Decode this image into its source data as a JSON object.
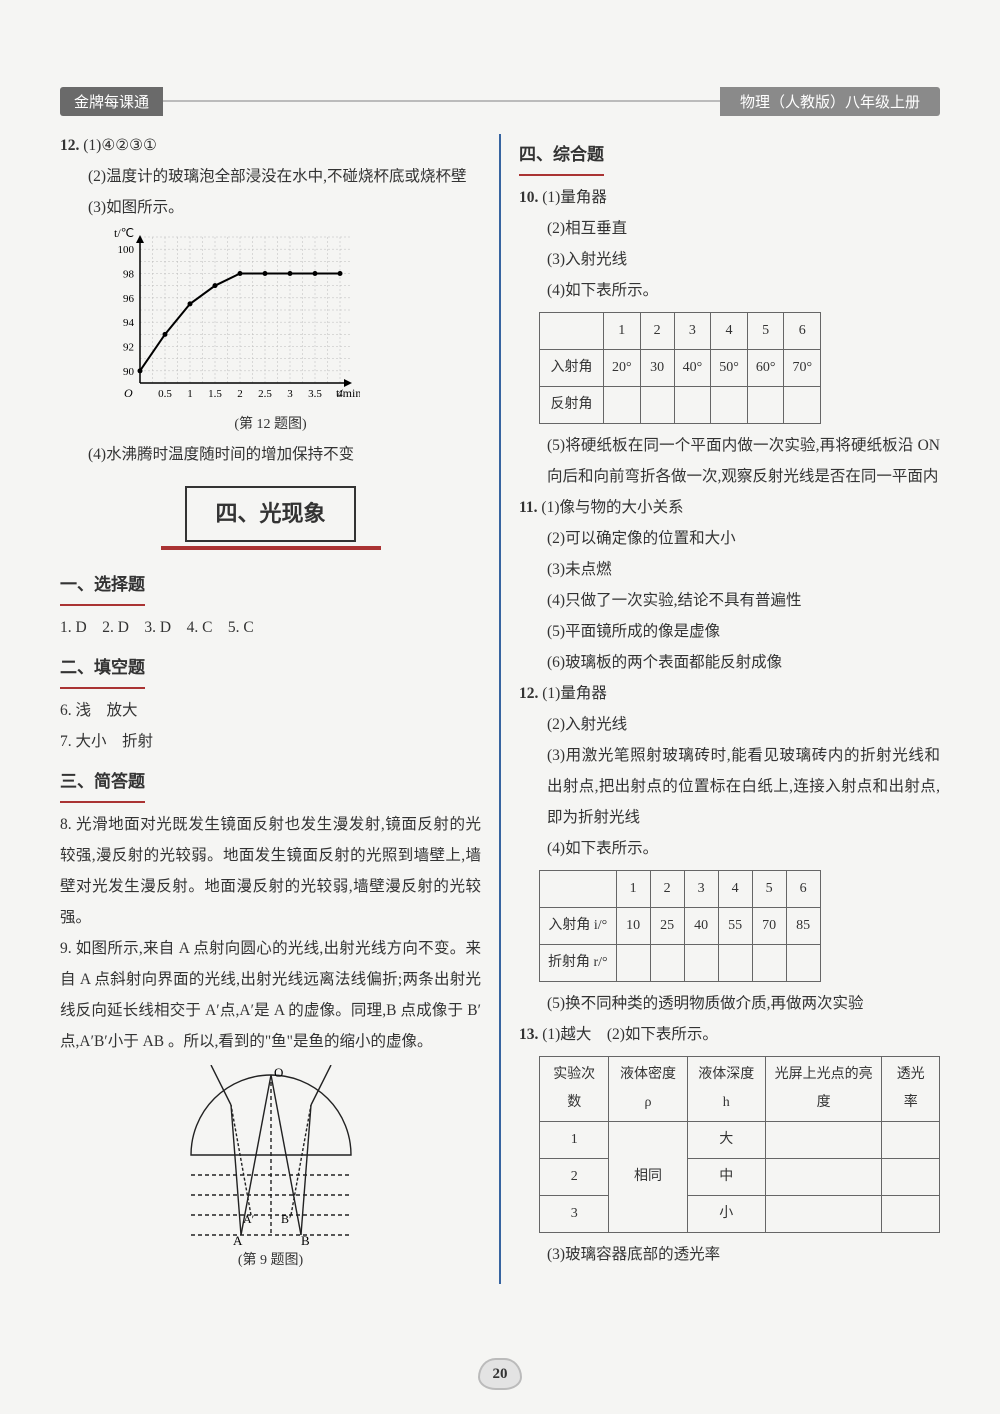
{
  "header": {
    "left": "金牌每课通",
    "right": "物理（人教版）八年级上册"
  },
  "left": {
    "q12": {
      "num": "12.",
      "p1": "(1)④②③①",
      "p2": "(2)温度计的玻璃泡全部浸没在水中,不碰烧杯底或烧杯壁",
      "p3": "(3)如图所示。",
      "p4": "(4)水沸腾时温度随时间的增加保持不变",
      "chart_caption": "(第 12 题图)",
      "chart": {
        "type": "line",
        "xlabel": "t/min",
        "ylabel": "t/℃",
        "xlim": [
          0,
          4.2
        ],
        "ylim": [
          89,
          101
        ],
        "xticks": [
          0.5,
          1,
          1.5,
          2,
          2.5,
          3,
          3.5,
          4
        ],
        "xtick_labels": [
          "0.5",
          "1",
          "1.5",
          "2",
          "2.5",
          "3",
          "3.5",
          "4"
        ],
        "yticks": [
          90,
          92,
          94,
          96,
          98,
          100
        ],
        "grid_minor_step_x": 0.25,
        "grid_minor_step_y": 1,
        "line_color": "#000000",
        "grid_color": "#bbbbbb",
        "line_width": 2,
        "data_x": [
          0,
          0.5,
          1,
          1.5,
          2,
          2.5,
          3,
          3.5,
          4
        ],
        "data_y": [
          90,
          93,
          95.5,
          97,
          98,
          98,
          98,
          98,
          98
        ]
      }
    },
    "section_box": "四、光现象",
    "s1": {
      "title": "一、选择题",
      "line": "1. D　2. D　3. D　4. C　5. C"
    },
    "s2": {
      "title": "二、填空题",
      "q6": "6. 浅　放大",
      "q7": "7. 大小　折射"
    },
    "s3": {
      "title": "三、简答题",
      "q8": "8. 光滑地面对光既发生镜面反射也发生漫发射,镜面反射的光较强,漫反射的光较弱。地面发生镜面反射的光照到墙壁上,墙壁对光发生漫反射。地面漫反射的光较弱,墙壁漫反射的光较强。",
      "q9": "9. 如图所示,来自 A 点射向圆心的光线,出射光线方向不变。来自 A 点斜射向界面的光线,出射光线远离法线偏折;两条出射光线反向延长线相交于 A′点,A′是 A 的虚像。同理,B 点成像于 B′点,A′B′小于 AB 。所以,看到的\"鱼\"是鱼的缩小的虚像。",
      "fig9_caption": "(第 9 题图)",
      "fig9_labels": {
        "O": "O",
        "A": "A",
        "B": "B",
        "Ap": "A′",
        "Bp": "B′"
      }
    }
  },
  "right": {
    "s4": {
      "title": "四、综合题"
    },
    "q10": {
      "num": "10.",
      "p1": "(1)量角器",
      "p2": "(2)相互垂直",
      "p3": "(3)入射光线",
      "p4": "(4)如下表所示。",
      "table": {
        "cols": [
          "",
          "1",
          "2",
          "3",
          "4",
          "5",
          "6"
        ],
        "row1_label": "入射角",
        "row1": [
          "20°",
          "30",
          "40°",
          "50°",
          "60°",
          "70°"
        ],
        "row2_label": "反射角",
        "row2": [
          "",
          "",
          "",
          "",
          "",
          ""
        ]
      },
      "p5": "(5)将硬纸板在同一个平面内做一次实验,再将硬纸板沿 ON 向后和向前弯折各做一次,观察反射光线是否在同一平面内"
    },
    "q11": {
      "num": "11.",
      "p1": "(1)像与物的大小关系",
      "p2": "(2)可以确定像的位置和大小",
      "p3": "(3)未点燃",
      "p4": "(4)只做了一次实验,结论不具有普遍性",
      "p5": "(5)平面镜所成的像是虚像",
      "p6": "(6)玻璃板的两个表面都能反射成像"
    },
    "q12": {
      "num": "12.",
      "p1": "(1)量角器",
      "p2": "(2)入射光线",
      "p3": "(3)用激光笔照射玻璃砖时,能看见玻璃砖内的折射光线和出射点,把出射点的位置标在白纸上,连接入射点和出射点,即为折射光线",
      "p4": "(4)如下表所示。",
      "table": {
        "cols": [
          "",
          "1",
          "2",
          "3",
          "4",
          "5",
          "6"
        ],
        "row1_label": "入射角 i/°",
        "row1": [
          "10",
          "25",
          "40",
          "55",
          "70",
          "85"
        ],
        "row2_label": "折射角 r/°",
        "row2": [
          "",
          "",
          "",
          "",
          "",
          ""
        ]
      },
      "p5": "(5)换不同种类的透明物质做介质,再做两次实验"
    },
    "q13": {
      "num": "13.",
      "p1": "(1)越大　(2)如下表所示。",
      "table": {
        "headers": [
          "实验次数",
          "液体密度 ρ",
          "液体深度 h",
          "光屏上光点的亮度",
          "透光率"
        ],
        "rows": [
          [
            "1",
            "",
            "大",
            "",
            ""
          ],
          [
            "2",
            "相同",
            "中",
            "",
            ""
          ],
          [
            "3",
            "",
            "小",
            "",
            ""
          ]
        ]
      },
      "p3": "(3)玻璃容器底部的透光率"
    }
  },
  "page_number": "20"
}
